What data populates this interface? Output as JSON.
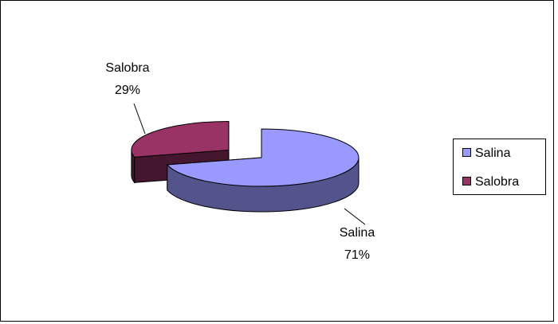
{
  "chart_data": {
    "type": "pie",
    "three_d": true,
    "categories": [
      "Salina",
      "Salobra"
    ],
    "values": [
      71,
      29
    ],
    "value_labels": [
      "71%",
      "29%"
    ],
    "colors": [
      "#9999ff",
      "#993366"
    ],
    "legend": "right"
  }
}
